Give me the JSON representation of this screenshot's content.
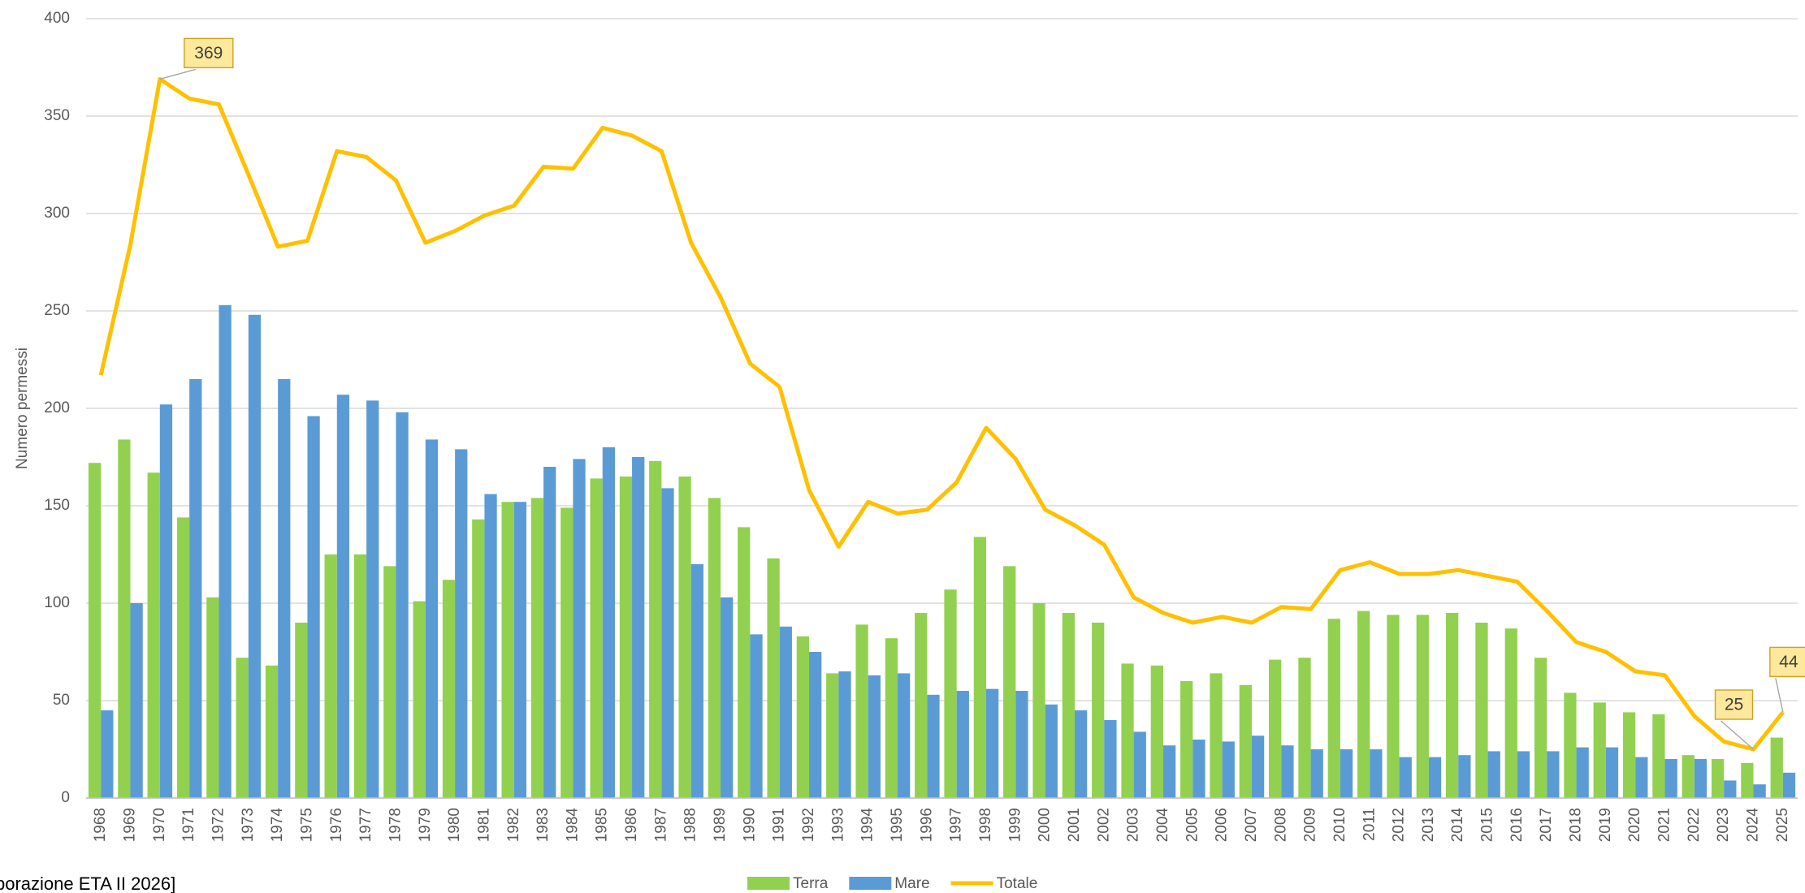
{
  "chart_data": {
    "type": "bar_line",
    "y_label": "Numero permessi",
    "source": "borazione ETA II 2026]",
    "categories": [
      "1968",
      "1969",
      "1970",
      "1971",
      "1972",
      "1973",
      "1974",
      "1975",
      "1976",
      "1977",
      "1978",
      "1979",
      "1980",
      "1981",
      "1982",
      "1983",
      "1984",
      "1985",
      "1986",
      "1987",
      "1988",
      "1989",
      "1990",
      "1991",
      "1992",
      "1993",
      "1994",
      "1995",
      "1996",
      "1997",
      "1998",
      "1999",
      "2000",
      "2001",
      "2002",
      "2003",
      "2004",
      "2005",
      "2006",
      "2007",
      "2008",
      "2009",
      "2010",
      "2011",
      "2012",
      "2013",
      "2014",
      "2015",
      "2016",
      "2017",
      "2018",
      "2019",
      "2020",
      "2021",
      "2022",
      "2023",
      "2024",
      "2025"
    ],
    "series": [
      {
        "name": "Terra",
        "type": "bar",
        "color": "#92d050",
        "values": [
          172,
          184,
          167,
          144,
          103,
          72,
          68,
          90,
          125,
          125,
          119,
          101,
          112,
          143,
          152,
          154,
          149,
          164,
          165,
          173,
          165,
          154,
          139,
          123,
          83,
          64,
          89,
          82,
          95,
          107,
          134,
          119,
          100,
          95,
          90,
          69,
          68,
          60,
          64,
          58,
          71,
          72,
          92,
          96,
          94,
          94,
          95,
          90,
          87,
          72,
          54,
          49,
          44,
          43,
          22,
          20,
          18,
          31
        ]
      },
      {
        "name": "Mare",
        "type": "bar",
        "color": "#5b9bd5",
        "values": [
          45,
          100,
          202,
          215,
          253,
          248,
          215,
          196,
          207,
          204,
          198,
          184,
          179,
          156,
          152,
          170,
          174,
          180,
          175,
          159,
          120,
          103,
          84,
          88,
          75,
          65,
          63,
          64,
          53,
          55,
          56,
          55,
          48,
          45,
          40,
          34,
          27,
          30,
          29,
          32,
          27,
          25,
          25,
          25,
          21,
          21,
          22,
          24,
          24,
          24,
          26,
          26,
          21,
          20,
          20,
          9,
          7,
          13
        ]
      },
      {
        "name": "Totale",
        "type": "line",
        "color": "#ffc000",
        "values": [
          217,
          284,
          369,
          359,
          356,
          320,
          283,
          286,
          332,
          329,
          317,
          285,
          291,
          299,
          304,
          324,
          323,
          344,
          340,
          332,
          285,
          257,
          223,
          211,
          158,
          129,
          152,
          146,
          148,
          162,
          190,
          174,
          148,
          140,
          130,
          103,
          95,
          90,
          93,
          90,
          98,
          97,
          117,
          121,
          115,
          115,
          117,
          114,
          111,
          96,
          80,
          75,
          65,
          63,
          42,
          29,
          25,
          44
        ]
      }
    ],
    "annotations": [
      {
        "x": "1970",
        "label": "369"
      },
      {
        "x": "2024",
        "label": "25"
      },
      {
        "x": "2025",
        "label": "44"
      }
    ],
    "ylim": [
      0,
      400
    ],
    "yticks": [
      0,
      50,
      100,
      150,
      200,
      250,
      300,
      350,
      400
    ],
    "grid": true,
    "legend": "bottom"
  }
}
